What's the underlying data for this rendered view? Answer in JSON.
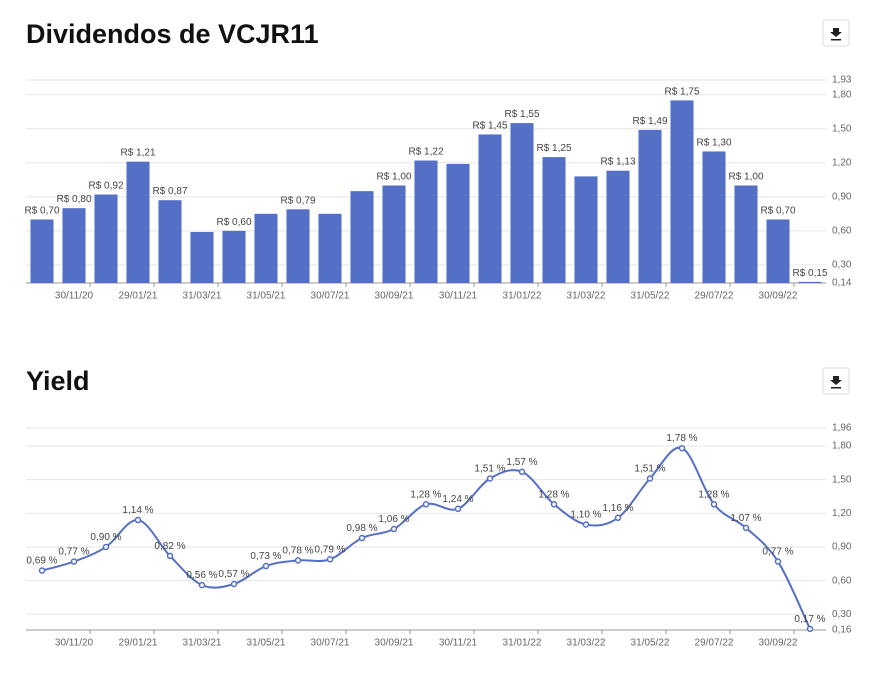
{
  "chart_data": [
    {
      "type": "bar",
      "title": "Dividendos de VCJR11",
      "color": "#5470c6",
      "categories": [
        null,
        "30/11/20",
        null,
        "29/01/21",
        null,
        "31/03/21",
        null,
        "31/05/21",
        null,
        "30/07/21",
        null,
        "30/09/21",
        null,
        "30/11/21",
        null,
        "31/01/22",
        null,
        "31/03/22",
        null,
        "31/05/22",
        null,
        "29/07/22",
        null,
        "30/09/22",
        null
      ],
      "values": [
        0.7,
        0.8,
        0.92,
        1.21,
        0.87,
        0.59,
        0.6,
        0.75,
        0.79,
        0.75,
        0.95,
        1.0,
        1.22,
        1.19,
        1.45,
        1.55,
        1.25,
        1.08,
        1.13,
        1.49,
        1.75,
        1.3,
        1.0,
        0.7,
        0.15
      ],
      "value_labels": [
        "R$ 0,70",
        "R$ 0,80",
        "R$ 0,92",
        "R$ 1,21",
        "R$ 0,87",
        null,
        "R$ 0,60",
        null,
        "R$ 0,79",
        null,
        null,
        "R$ 1,00",
        "R$ 1,22",
        null,
        "R$ 1,45",
        "R$ 1,55",
        "R$ 1,25",
        null,
        "R$ 1,13",
        "R$ 1,49",
        "R$ 1,75",
        "R$ 1,30",
        "R$ 1,00",
        "R$ 0,70",
        "R$ 0,15"
      ],
      "ylim": [
        0.14,
        1.93
      ],
      "yticks": [
        {
          "value": 0.14,
          "label": "0,14"
        },
        {
          "value": 0.3,
          "label": "0,30"
        },
        {
          "value": 0.6,
          "label": "0,60"
        },
        {
          "value": 0.9,
          "label": "0,90"
        },
        {
          "value": 1.2,
          "label": "1,20"
        },
        {
          "value": 1.5,
          "label": "1,50"
        },
        {
          "value": 1.8,
          "label": "1,80"
        },
        {
          "value": 1.93,
          "label": "1,93"
        }
      ],
      "grid": true
    },
    {
      "type": "line",
      "title": "Yield",
      "color": "#5470c6",
      "categories": [
        null,
        "30/11/20",
        null,
        "29/01/21",
        null,
        "31/03/21",
        null,
        "31/05/21",
        null,
        "30/07/21",
        null,
        "30/09/21",
        null,
        "30/11/21",
        null,
        "31/01/22",
        null,
        "31/03/22",
        null,
        "31/05/22",
        null,
        "29/07/22",
        null,
        "30/09/22",
        null
      ],
      "values": [
        0.69,
        0.77,
        0.9,
        1.14,
        0.82,
        0.56,
        0.57,
        0.73,
        0.78,
        0.79,
        0.98,
        1.06,
        1.28,
        1.24,
        1.51,
        1.57,
        1.28,
        1.1,
        1.16,
        1.51,
        1.78,
        1.28,
        1.07,
        0.77,
        0.17
      ],
      "value_labels": [
        "0,69 %",
        "0,77 %",
        "0,90 %",
        "1,14 %",
        "0,82 %",
        "0,56 %",
        "0,57 %",
        "0,73 %",
        "0,78 %",
        "0,79 %",
        "0,98 %",
        "1,06 %",
        "1,28 %",
        "1,24 %",
        "1,51 %",
        "1,57 %",
        "1,28 %",
        "1,10 %",
        "1,16 %",
        "1,51 %",
        "1,78 %",
        "1,28 %",
        "1,07 %",
        "0,77 %",
        "0,17 %"
      ],
      "ylim": [
        0.16,
        1.96
      ],
      "yticks": [
        {
          "value": 0.16,
          "label": "0,16"
        },
        {
          "value": 0.3,
          "label": "0,30"
        },
        {
          "value": 0.6,
          "label": "0,60"
        },
        {
          "value": 0.9,
          "label": "0,90"
        },
        {
          "value": 1.2,
          "label": "1,20"
        },
        {
          "value": 1.5,
          "label": "1,50"
        },
        {
          "value": 1.8,
          "label": "1,80"
        },
        {
          "value": 1.96,
          "label": "1,96"
        }
      ],
      "grid": true
    }
  ]
}
